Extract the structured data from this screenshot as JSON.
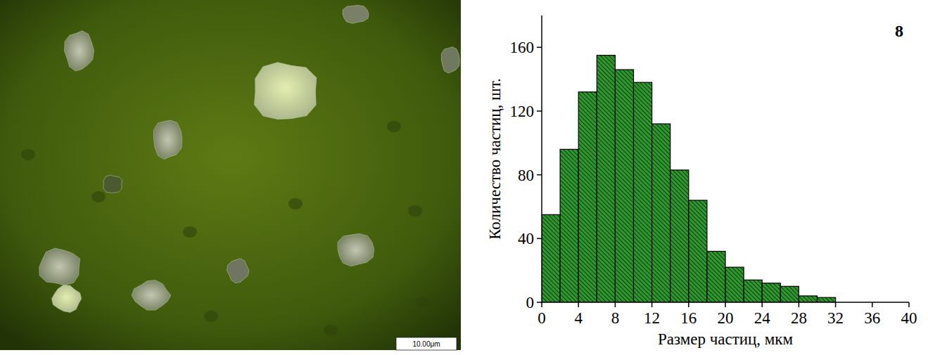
{
  "image": {
    "scale_bar_label": "10.00μm"
  },
  "chart_data": {
    "type": "histogram",
    "title": "8",
    "x_label": "Размер частиц, мкм",
    "y_label": "Количество частиц, шт.",
    "bins": [
      0,
      2,
      4,
      6,
      8,
      10,
      12,
      14,
      16,
      18,
      20,
      22,
      24,
      26,
      28,
      30,
      32
    ],
    "values": [
      55,
      96,
      132,
      155,
      146,
      138,
      112,
      83,
      64,
      32,
      22,
      14,
      12,
      10,
      4,
      3
    ],
    "color": "#2e9a2e",
    "xlim": [
      0,
      40
    ],
    "xticks": [
      0,
      4,
      8,
      12,
      16,
      20,
      24,
      28,
      32,
      36,
      40
    ],
    "ylim": [
      0,
      180
    ],
    "yticks": [
      0,
      40,
      80,
      120,
      160
    ],
    "grid": false
  }
}
